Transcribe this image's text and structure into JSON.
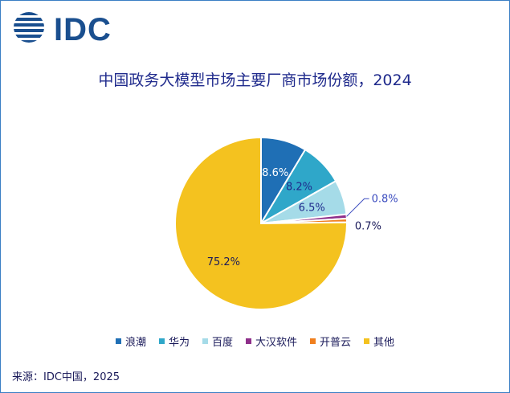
{
  "logo": {
    "text": "IDC"
  },
  "source": "来源：IDC中国，2025",
  "colors": {
    "navy": "#1a4f8f",
    "frame": "#3b7fc4"
  },
  "chart_data": {
    "type": "pie",
    "title": "中国政务大模型市场主要厂商市场份额，2024",
    "unit": "%",
    "start_angle_deg": 0,
    "direction": "clockwise",
    "legend_position": "bottom",
    "slices": [
      {
        "label": "浪潮",
        "value": 8.6,
        "display": "8.6%",
        "color": "#1f6fb5"
      },
      {
        "label": "华为",
        "value": 8.2,
        "display": "8.2%",
        "color": "#2fa7c9"
      },
      {
        "label": "百度",
        "value": 6.5,
        "display": "6.5%",
        "color": "#a5dbe8"
      },
      {
        "label": "大汉软件",
        "value": 0.8,
        "display": "0.8%",
        "color": "#8e2f8a"
      },
      {
        "label": "开普云",
        "value": 0.7,
        "display": "0.7%",
        "color": "#f07f1e"
      },
      {
        "label": "其他",
        "value": 75.2,
        "display": "75.2%",
        "color": "#f4c21f"
      }
    ]
  }
}
